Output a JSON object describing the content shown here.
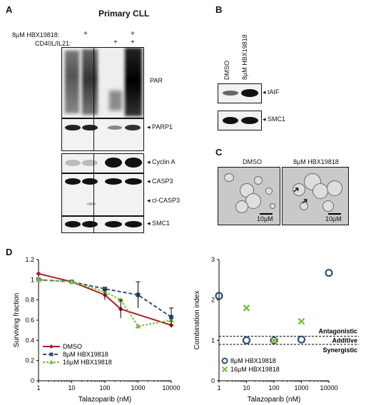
{
  "panels": {
    "A": "A",
    "B": "B",
    "C": "C",
    "D": "D"
  },
  "panelA": {
    "title": "Primary CLL",
    "row1_label": "8µM HBX19818:",
    "row2_label": "CD40L/IL21:",
    "plus": "+",
    "bands": [
      "PAR",
      "PARP1",
      "Cyclin A",
      "CASP3",
      "cl-CASP3",
      "SMC1"
    ]
  },
  "panelB": {
    "lanes": [
      "DMSO",
      "8µM HBX19818"
    ],
    "bands": [
      "tAIF",
      "SMC1"
    ]
  },
  "panelC": {
    "labels": [
      "DMSO",
      "8µM HBX19818"
    ],
    "scale": "10µM"
  },
  "colors": {
    "dmso": "#b0182a",
    "hbx8": "#2e4f7e",
    "hbx16": "#7cbd3c"
  },
  "chart_data": [
    {
      "type": "line",
      "xlabel": "Talazoparib (nM)",
      "ylabel": "Surviving fraction",
      "xscale": "log",
      "xlim": [
        1,
        10000
      ],
      "ylim": [
        0,
        1.2
      ],
      "xticks": [
        "1",
        "10",
        "100",
        "1000",
        "10000"
      ],
      "yticks": [
        "0",
        "0.2",
        "0.4",
        "0.6",
        "0.8",
        "1",
        "1.2"
      ],
      "legend_position": "bottom-left",
      "series": [
        {
          "name": "DMSO",
          "color": "#b0182a",
          "x": [
            1,
            10,
            100,
            300,
            10000
          ],
          "y": [
            1.06,
            0.98,
            0.85,
            0.71,
            0.55
          ]
        },
        {
          "name": "8µM HBX19818",
          "color": "#2e4f7e",
          "x": [
            1,
            10,
            100,
            1000,
            10000
          ],
          "y": [
            1.0,
            0.98,
            0.91,
            0.85,
            0.63
          ]
        },
        {
          "name": "16µM HBX19818",
          "color": "#7cbd3c",
          "x": [
            1,
            10,
            100,
            300,
            1000,
            10000
          ],
          "y": [
            1.0,
            0.98,
            0.88,
            0.8,
            0.54,
            0.6
          ]
        }
      ]
    },
    {
      "type": "scatter",
      "xlabel": "Talazoparib (nM)",
      "ylabel": "Combination index",
      "xscale": "log",
      "xlim": [
        1,
        10000
      ],
      "ylim": [
        0,
        3
      ],
      "xticks": [
        "1",
        "10",
        "100",
        "1000",
        "10000"
      ],
      "yticks": [
        "0",
        "1",
        "2",
        "3"
      ],
      "reference_lines": [
        1.1,
        0.9
      ],
      "region_labels": [
        "Antagonistic",
        "Additive",
        "Synergistic"
      ],
      "legend_position": "bottom-left",
      "series": [
        {
          "name": "8µM HBX19818",
          "marker": "circle",
          "color": "#2e4f7e",
          "x": [
            1,
            10,
            100,
            1000,
            10000
          ],
          "y": [
            2.1,
            1.0,
            1.0,
            1.02,
            2.67
          ]
        },
        {
          "name": "16µM HBX19818",
          "marker": "x",
          "color": "#7cbd3c",
          "x": [
            10,
            100,
            1000
          ],
          "y": [
            1.8,
            1.0,
            1.47
          ]
        }
      ]
    }
  ]
}
